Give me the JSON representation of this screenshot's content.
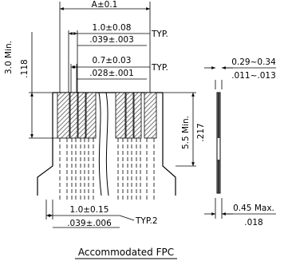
{
  "dimensions": {
    "a_total": "A±0.1",
    "pitch_mm": "1.0±0.08",
    "pitch_in": ".039±.003",
    "typ_label": "TYP.",
    "conductor_mm": "0.7±0.03",
    "conductor_in": ".028±.001",
    "typ_label_2": "TYP.",
    "min_3_0": "3.0 Min.",
    "dim_118": ".118",
    "min_5_5": "5.5 Min.",
    "dim_217": ".217",
    "bottom_mm": "1.0±0.15",
    "bottom_in": ".039±.006",
    "typ2_label": "TYP.2",
    "thick_mm": "0.29~0.34",
    "thick_in": ".011~.013",
    "max_mm": "0.45 Max.",
    "max_in": ".018"
  },
  "caption": "Accommodated FPC"
}
